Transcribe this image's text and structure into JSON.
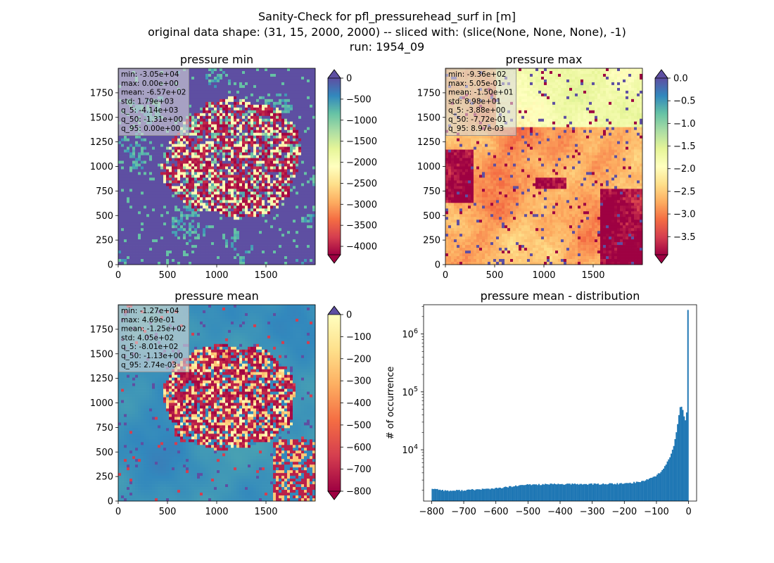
{
  "figure": {
    "suptitle": [
      "Sanity-Check for pfl_pressurehead_surf in [m]",
      "original data shape: (31, 15, 2000, 2000) -- sliced with: (slice(None, None, None), -1)",
      "run: 1954_09"
    ]
  },
  "chart_data": [
    {
      "type": "heatmap",
      "title": "pressure min",
      "colormap": "Spectral",
      "xlim": [
        0,
        2000
      ],
      "ylim": [
        0,
        2000
      ],
      "xticks": [
        "0",
        "500",
        "1000",
        "1500"
      ],
      "yticks": [
        "0",
        "250",
        "500",
        "750",
        "1000",
        "1250",
        "1500",
        "1750"
      ],
      "color_range": [
        -4200,
        0
      ],
      "colorbar_ticks": [
        "0",
        "−500",
        "−1000",
        "−1500",
        "−2000",
        "−2500",
        "−3000",
        "−3500",
        "−4000"
      ],
      "colorbar_extend": "both",
      "stats": [
        "min: -3.05e+04",
        "max: 0.00e+00",
        "mean: -6.57e+02",
        "std: 1.79e+03",
        "q_5: -4.14e+03",
        "q_50: -1.31e+00",
        "q_95: 0.00e+00"
      ]
    },
    {
      "type": "heatmap",
      "title": "pressure max",
      "colormap": "Spectral",
      "xlim": [
        0,
        2000
      ],
      "ylim": [
        0,
        2000
      ],
      "xticks": [
        "0",
        "500",
        "1000",
        "1500"
      ],
      "yticks": [
        "0",
        "250",
        "500",
        "750",
        "1000",
        "1250",
        "1500",
        "1750"
      ],
      "color_range": [
        -3.9,
        0.0
      ],
      "colorbar_ticks": [
        "0.0",
        "−0.5",
        "−1.0",
        "−1.5",
        "−2.0",
        "−2.5",
        "−3.0",
        "−3.5"
      ],
      "colorbar_extend": "both",
      "stats": [
        "min: -9.36e+02",
        "max: 5.05e-01",
        "mean: -1.50e+01",
        "std: 8.98e+01",
        "q_5: -3.88e+00",
        "q_50: -7.72e-01",
        "q_95: 8.97e-03"
      ]
    },
    {
      "type": "heatmap",
      "title": "pressure mean",
      "colormap": "Spectral",
      "xlim": [
        0,
        2000
      ],
      "ylim": [
        0,
        2000
      ],
      "xticks": [
        "0",
        "500",
        "1000",
        "1500"
      ],
      "yticks": [
        "0",
        "250",
        "500",
        "750",
        "1000",
        "1250",
        "1500",
        "1750"
      ],
      "color_range": [
        -800,
        0
      ],
      "colorbar_ticks": [
        "0",
        "−100",
        "−200",
        "−300",
        "−400",
        "−500",
        "−600",
        "−700",
        "−800"
      ],
      "colorbar_extend": "both",
      "stats": [
        "min: -1.27e+04",
        "max: 4.69e-01",
        "mean: -1.25e+02",
        "std: 4.05e+02",
        "q_5: -8.01e+02",
        "q_50: -1.13e+00",
        "q_95: 2.74e-03"
      ]
    },
    {
      "type": "bar",
      "title": "pressure mean - distribution",
      "ylabel": "# of occurrence",
      "xlabel": "",
      "yscale": "log",
      "xlim": [
        -825,
        25
      ],
      "ylim": [
        1300,
        3200000
      ],
      "xticks": [
        "−800",
        "−700",
        "−600",
        "−500",
        "−400",
        "−300",
        "−200",
        "−100",
        "0"
      ],
      "yticks": [
        "10^4",
        "10^5",
        "10^6"
      ],
      "bar_color": "#1f77b4",
      "bin_edges_range": [
        -800,
        0
      ],
      "bins": 200,
      "profile": [
        {
          "x": -800,
          "y": 2150
        },
        {
          "x": -750,
          "y": 1950
        },
        {
          "x": -700,
          "y": 2000
        },
        {
          "x": -600,
          "y": 2150
        },
        {
          "x": -500,
          "y": 2500
        },
        {
          "x": -400,
          "y": 2550
        },
        {
          "x": -300,
          "y": 2550
        },
        {
          "x": -200,
          "y": 2600
        },
        {
          "x": -150,
          "y": 2800
        },
        {
          "x": -120,
          "y": 3200
        },
        {
          "x": -100,
          "y": 3600
        },
        {
          "x": -80,
          "y": 4500
        },
        {
          "x": -60,
          "y": 7000
        },
        {
          "x": -45,
          "y": 12000
        },
        {
          "x": -35,
          "y": 25000
        },
        {
          "x": -30,
          "y": 40000
        },
        {
          "x": -25,
          "y": 60000
        },
        {
          "x": -20,
          "y": 55000
        },
        {
          "x": -15,
          "y": 40000
        },
        {
          "x": -10,
          "y": 33000
        },
        {
          "x": -6,
          "y": 45000
        },
        {
          "x": -4,
          "y": 62000
        },
        {
          "x": -2,
          "y": 58000
        },
        {
          "x": 0,
          "y": 2600000
        }
      ]
    }
  ]
}
